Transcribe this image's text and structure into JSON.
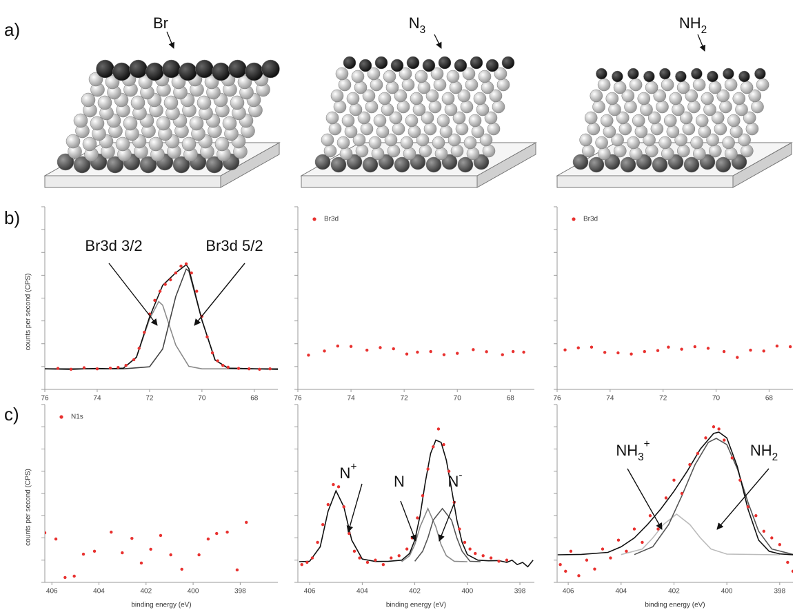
{
  "row_labels": [
    "a)",
    "b)",
    "c)"
  ],
  "structures": [
    {
      "text": "Br"
    },
    {
      "text": "N",
      "sub": "3"
    },
    {
      "text": "NH",
      "sub": "2"
    }
  ],
  "chart_data": [
    {
      "type": "scatter",
      "ylabel": "counts per second (CPS)",
      "xlim": [
        76,
        67.1
      ],
      "xticks": [
        76,
        74,
        72,
        70,
        68
      ],
      "ylim": [
        0,
        8
      ],
      "yticks": [
        0,
        1,
        2,
        3,
        4,
        5,
        6,
        7,
        8
      ],
      "series": [
        {
          "type": "line",
          "color": "#8a8a8a",
          "x": [
            76,
            75,
            74,
            73.5,
            73,
            72.5,
            72,
            71.65,
            71.5,
            71,
            70.5,
            70,
            69,
            68,
            67.1
          ],
          "values": [
            0.9,
            0.9,
            0.9,
            0.9,
            0.93,
            1.4,
            3.08,
            3.85,
            3.69,
            1.94,
            1.01,
            0.9,
            0.9,
            0.9,
            0.9
          ]
        },
        {
          "type": "line",
          "color": "#444444",
          "x": [
            76,
            74,
            73,
            72,
            71.5,
            71,
            70.6,
            70.5,
            70,
            69.5,
            69,
            68,
            67.1
          ],
          "values": [
            0.9,
            0.9,
            0.9,
            0.99,
            1.77,
            4.07,
            5.27,
            5.18,
            3.03,
            1.29,
            0.93,
            0.9,
            0.9
          ]
        },
        {
          "type": "line",
          "color": "#111111",
          "x": [
            76,
            75,
            74,
            73.5,
            73,
            72.5,
            72,
            71.5,
            71,
            70.6,
            70.5,
            70,
            69.5,
            69,
            68,
            67.1
          ],
          "values": [
            0.9,
            0.88,
            0.92,
            0.9,
            0.93,
            1.41,
            3.17,
            4.56,
            5.11,
            5.46,
            5.29,
            3.03,
            1.29,
            0.93,
            0.9,
            0.88
          ]
        },
        {
          "type": "scatter",
          "color": "#e8312f",
          "x": [
            75.5,
            75,
            74.5,
            74,
            73.5,
            73.2,
            72.9,
            72.6,
            72.4,
            72.2,
            72,
            71.8,
            71.6,
            71.4,
            71.2,
            71,
            70.8,
            70.6,
            70.4,
            70.2,
            70,
            69.8,
            69.6,
            69.4,
            69.2,
            69,
            68.6,
            68.2,
            67.8,
            67.4
          ],
          "values": [
            0.92,
            0.88,
            0.95,
            0.9,
            0.93,
            0.96,
            1.05,
            1.3,
            1.8,
            2.5,
            3.3,
            3.9,
            4.3,
            4.6,
            4.8,
            5.1,
            5.4,
            5.5,
            5.1,
            4.3,
            3.2,
            2.3,
            1.6,
            1.25,
            1.05,
            0.97,
            0.92,
            0.9,
            0.88,
            0.9
          ]
        }
      ],
      "annotations": [
        {
          "text": "Br3d 3/2"
        },
        {
          "text": "Br3d 5/2"
        }
      ]
    },
    {
      "type": "scatter",
      "legend": true,
      "xlim": [
        76,
        67.1
      ],
      "xticks": [
        76,
        74,
        72,
        70,
        68
      ],
      "ylim": [
        0,
        8
      ],
      "yticks": [
        0,
        1,
        2,
        3,
        4,
        5,
        6,
        7,
        8
      ],
      "series": [
        {
          "type": "scatter",
          "name": "Br3d",
          "color": "#e8312f",
          "x": [
            75.6,
            75,
            74.5,
            74,
            73.4,
            72.9,
            72.4,
            71.9,
            71.5,
            71,
            70.5,
            70,
            69.4,
            68.9,
            68.3,
            67.9,
            67.5
          ],
          "values": [
            1.5,
            1.68,
            1.9,
            1.88,
            1.72,
            1.83,
            1.78,
            1.55,
            1.63,
            1.66,
            1.52,
            1.58,
            1.74,
            1.65,
            1.52,
            1.66,
            1.63
          ]
        }
      ]
    },
    {
      "type": "scatter",
      "legend": true,
      "xlim": [
        76,
        67.1
      ],
      "xticks": [
        76,
        74,
        72,
        70,
        68
      ],
      "ylim": [
        0,
        8
      ],
      "yticks": [
        0,
        1,
        2,
        3,
        4,
        5,
        6,
        7,
        8
      ],
      "series": [
        {
          "type": "scatter",
          "name": "Br3d",
          "color": "#e8312f",
          "x": [
            75.7,
            75.2,
            74.7,
            74.2,
            73.7,
            73.2,
            72.7,
            72.2,
            71.8,
            71.3,
            70.8,
            70.3,
            69.7,
            69.2,
            68.7,
            68.2,
            67.7,
            67.2
          ],
          "values": [
            1.73,
            1.82,
            1.85,
            1.62,
            1.6,
            1.55,
            1.66,
            1.7,
            1.85,
            1.76,
            1.87,
            1.8,
            1.66,
            1.4,
            1.72,
            1.68,
            1.9,
            1.87
          ]
        }
      ]
    },
    {
      "type": "scatter",
      "legend": true,
      "ylabel": "counts per second (CPS)",
      "xlabel": "binding energy (eV)",
      "xlim": [
        406.3,
        396.4
      ],
      "xticks": [
        406,
        404,
        402,
        400,
        398
      ],
      "ylim": [
        0,
        8
      ],
      "yticks": [
        0,
        1,
        2,
        3,
        4,
        5,
        6,
        7,
        8
      ],
      "series": [
        {
          "type": "scatter",
          "name": "N1s",
          "color": "#e8312f",
          "x": [
            406.3,
            405.83,
            405.44,
            405.05,
            404.66,
            404.19,
            403.48,
            403.01,
            402.6,
            402.2,
            401.8,
            401.38,
            400.95,
            400.48,
            399.75,
            399.36,
            399,
            398.55,
            398.13,
            397.74
          ],
          "values": [
            2.23,
            1.95,
            0.22,
            0.28,
            1.27,
            1.4,
            2.26,
            1.33,
            1.98,
            0.87,
            1.49,
            2.11,
            1.24,
            0.59,
            1.24,
            1.95,
            2.2,
            2.26,
            0.56,
            2.7
          ]
        }
      ]
    },
    {
      "type": "scatter",
      "xlabel": "binding energy (eV)",
      "xlim": [
        406.45,
        397.45
      ],
      "xticks": [
        406,
        404,
        402,
        400,
        398
      ],
      "ylim": [
        0,
        8
      ],
      "yticks": [
        0,
        1,
        2,
        3,
        4,
        5,
        6,
        7,
        8
      ],
      "series": [
        {
          "type": "line",
          "color": "#8a8a8a",
          "x": [
            402.5,
            402.2,
            402,
            401.8,
            401.5,
            401.2,
            401,
            400.8,
            400.5,
            400
          ],
          "values": [
            0.93,
            1.2,
            1.7,
            2.5,
            3.32,
            2.5,
            1.7,
            1.2,
            0.95,
            0.93
          ]
        },
        {
          "type": "line",
          "color": "#555555",
          "x": [
            402,
            401.7,
            401.5,
            401.3,
            400.95,
            400.6,
            400.4,
            400.2,
            399.9,
            399.5
          ],
          "values": [
            0.95,
            1.4,
            2,
            2.8,
            3.32,
            2.8,
            2,
            1.4,
            0.95,
            0.93
          ]
        },
        {
          "type": "line",
          "color": "#111111",
          "x": [
            406.4,
            406,
            405.6,
            405.3,
            405,
            404.7,
            404.4,
            404,
            403.5,
            403,
            402.5,
            402.2,
            402,
            401.8,
            401.6,
            401.4,
            401.2,
            401,
            400.8,
            400.6,
            400.4,
            400.2,
            400,
            399.6,
            399.2,
            398.8,
            398.5,
            398.3,
            398.1,
            397.9,
            397.7,
            397.5
          ],
          "values": [
            0.93,
            0.95,
            1.6,
            3.2,
            4.12,
            3.4,
            1.9,
            1.05,
            0.94,
            0.95,
            1,
            1.3,
            1.9,
            3,
            4.5,
            5.8,
            6.4,
            6.3,
            5.5,
            4.2,
            2.8,
            1.8,
            1.25,
            1,
            0.97,
            0.98,
            0.9,
            1,
            0.8,
            0.9,
            0.7,
            1
          ]
        },
        {
          "type": "scatter",
          "color": "#e8312f",
          "x": [
            406.3,
            406.1,
            405.9,
            405.7,
            405.5,
            405.3,
            405.1,
            404.9,
            404.7,
            404.5,
            404.3,
            404.1,
            403.8,
            403.5,
            403.2,
            402.9,
            402.6,
            402.3,
            402.1,
            401.9,
            401.7,
            401.5,
            401.3,
            401.1,
            400.9,
            400.7,
            400.5,
            400.3,
            400.1,
            399.9,
            399.7,
            399.4,
            399.1,
            398.8,
            398.5
          ],
          "values": [
            0.8,
            0.9,
            1.1,
            1.8,
            2.6,
            3.5,
            4.4,
            4.3,
            3.4,
            2.2,
            1.4,
            1.1,
            0.9,
            1,
            0.8,
            1.1,
            1.2,
            1.5,
            2,
            2.9,
            3.9,
            5.1,
            6.1,
            6.9,
            6.2,
            5,
            3.6,
            2.4,
            1.8,
            1.5,
            1.3,
            1.2,
            1.1,
            0.95,
            1
          ]
        }
      ],
      "annotations": [
        {
          "text": "N",
          "sup": "+"
        },
        {
          "text": "N"
        },
        {
          "text": "N",
          "sup": "-"
        }
      ]
    },
    {
      "type": "scatter",
      "xlabel": "binding energy (eV)",
      "xlim": [
        406.42,
        397.5
      ],
      "xticks": [
        406,
        404,
        402,
        400,
        398
      ],
      "ylim": [
        0,
        8
      ],
      "yticks": [
        0,
        1,
        2,
        3,
        4,
        5,
        6,
        7,
        8
      ],
      "series": [
        {
          "type": "line",
          "color": "#bbbbbb",
          "x": [
            404,
            403.2,
            402.8,
            402.4,
            401.9,
            401.4,
            401,
            400.6,
            400,
            398
          ],
          "values": [
            1.25,
            1.5,
            2,
            2.6,
            3.07,
            2.6,
            2,
            1.5,
            1.27,
            1.24
          ]
        },
        {
          "type": "line",
          "color": "#555555",
          "x": [
            403.5,
            402.8,
            402.2,
            401.7,
            401.2,
            400.7,
            400.4,
            400,
            399.6,
            399.2,
            398.8,
            398.3,
            397.5
          ],
          "values": [
            1.25,
            1.6,
            2.6,
            3.9,
            5.3,
            6.3,
            6.48,
            6.2,
            5.1,
            3.6,
            2.3,
            1.5,
            1.26
          ]
        },
        {
          "type": "line",
          "color": "#111111",
          "x": [
            406.4,
            405.5,
            404.5,
            404,
            403.5,
            403,
            402.5,
            402,
            401.5,
            401,
            400.5,
            400.3,
            400,
            399.6,
            399.2,
            398.8,
            398.4,
            398,
            397.5
          ],
          "values": [
            1.24,
            1.26,
            1.35,
            1.6,
            2,
            2.6,
            3.3,
            4.1,
            5,
            6,
            6.7,
            6.76,
            6.5,
            5.2,
            3.3,
            1.9,
            1.4,
            1.28,
            1.24
          ]
        },
        {
          "type": "scatter",
          "color": "#e8312f",
          "x": [
            406.3,
            406.1,
            405.9,
            405.6,
            405.3,
            405,
            404.7,
            404.4,
            404.1,
            403.8,
            403.5,
            403.2,
            402.9,
            402.6,
            402.3,
            402,
            401.7,
            401.4,
            401.1,
            400.8,
            400.5,
            400.3,
            400.1,
            399.8,
            399.5,
            399.2,
            398.9,
            398.6,
            398.3,
            398,
            397.7,
            397.5
          ],
          "values": [
            0.8,
            0.5,
            1.4,
            0.3,
            1,
            0.6,
            1.5,
            1.1,
            1.9,
            1.4,
            2.4,
            1.8,
            3,
            2.4,
            3.8,
            4.6,
            4,
            5.3,
            5.8,
            6.5,
            7,
            6.9,
            6.4,
            5.6,
            4.6,
            3.4,
            3,
            2.3,
            2,
            1.7,
            0.9,
            0.5
          ]
        }
      ],
      "annotations": [
        {
          "text": "NH",
          "sub": "3",
          "sup": "+"
        },
        {
          "text": "NH",
          "sub": "2"
        }
      ]
    }
  ]
}
